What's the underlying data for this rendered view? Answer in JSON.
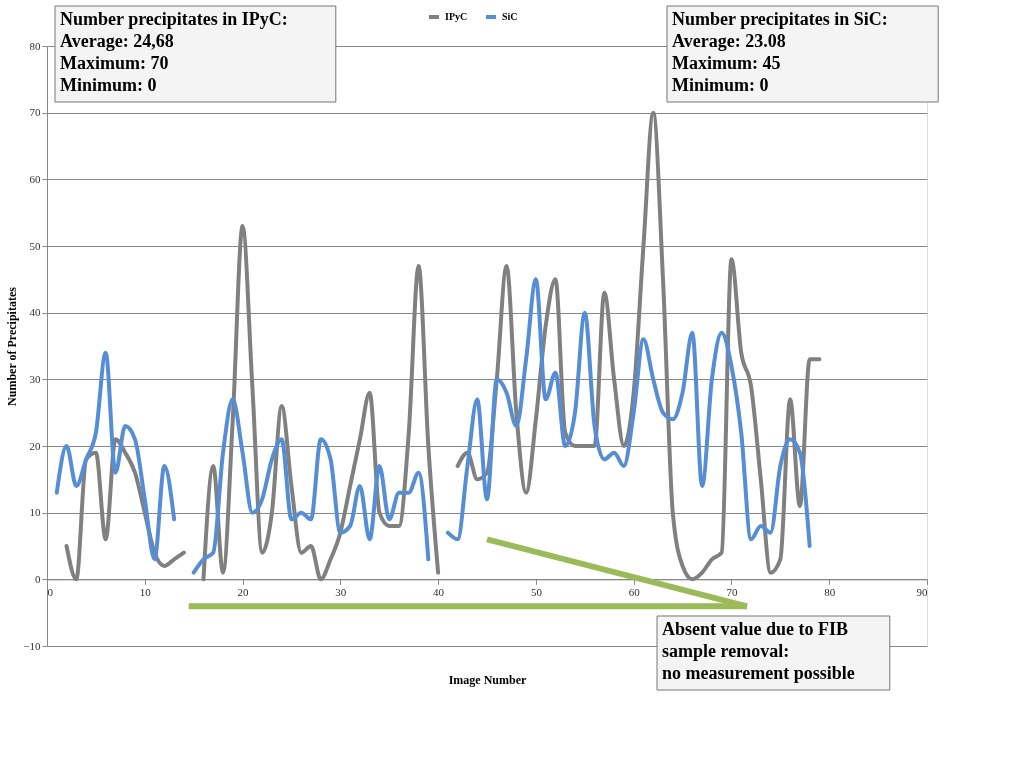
{
  "chart_data": {
    "type": "line",
    "xlabel": "Image Number",
    "ylabel": "Number of Precipitates",
    "x": [
      1,
      2,
      3,
      4,
      5,
      6,
      7,
      8,
      9,
      10,
      11,
      12,
      13,
      14,
      15,
      16,
      17,
      18,
      19,
      20,
      21,
      22,
      23,
      24,
      25,
      26,
      27,
      28,
      29,
      30,
      31,
      32,
      33,
      34,
      35,
      36,
      37,
      38,
      39,
      40,
      41,
      42,
      43,
      44,
      45,
      46,
      47,
      48,
      49,
      50,
      51,
      52,
      53,
      54,
      55,
      56,
      57,
      58,
      59,
      60,
      61,
      62,
      63,
      64,
      65,
      66,
      67,
      68,
      69,
      70,
      71,
      72,
      73,
      74,
      75,
      76,
      77,
      78,
      79
    ],
    "series": [
      {
        "name": "IPyC",
        "color": "#808080",
        "values": [
          null,
          5,
          0,
          18,
          19,
          6,
          21,
          19,
          16,
          10,
          4,
          2,
          3,
          4,
          null,
          0,
          17,
          1,
          24,
          53,
          29,
          4,
          10,
          26,
          14,
          4,
          5,
          0,
          3,
          7,
          14,
          21,
          28,
          10,
          8,
          8,
          22,
          47,
          20,
          1,
          null,
          17,
          19,
          15,
          16,
          30,
          47,
          25,
          13,
          24,
          38,
          45,
          22,
          20,
          20,
          20,
          43,
          30,
          20,
          28,
          50,
          70,
          45,
          10,
          2,
          0,
          1,
          3,
          4,
          48,
          34,
          29,
          15,
          1,
          3,
          27,
          11,
          33,
          33
        ]
      },
      {
        "name": "SiC",
        "color": "#558ed5",
        "values": [
          13,
          20,
          14,
          18,
          22,
          34,
          16,
          23,
          21,
          12,
          3,
          17,
          9,
          null,
          1,
          3,
          4,
          19,
          27,
          19,
          10,
          12,
          18,
          21,
          9,
          10,
          9,
          21,
          18,
          7,
          8,
          14,
          6,
          17,
          9,
          13,
          13,
          16,
          3,
          null,
          7,
          6,
          17,
          27,
          12,
          30,
          28,
          23,
          33,
          45,
          27,
          31,
          20,
          25,
          40,
          23,
          18,
          19,
          17,
          25,
          36,
          30,
          25,
          24,
          28,
          37,
          14,
          30,
          37,
          32,
          22,
          6,
          8,
          7,
          17,
          21,
          19,
          5,
          null
        ]
      }
    ],
    "xlim": [
      0,
      90
    ],
    "xticks": [
      0,
      10,
      20,
      30,
      40,
      50,
      60,
      70,
      80,
      90
    ],
    "ylim": [
      -10,
      80
    ],
    "yticks": [
      -10,
      0,
      10,
      20,
      30,
      40,
      50,
      60,
      70,
      80
    ],
    "grid": "y",
    "legend": "top",
    "annotations": [
      "Number precipitates in IPyC:\nAverage: 24,68\nMaximum: 70\nMinimum: 0",
      "Number precipitates in SiC:\nAverage: 23.08\nMaximum: 45\nMinimum: 0",
      "Absent value due to FIB\nsample removal:\nno measurement possible"
    ]
  }
}
